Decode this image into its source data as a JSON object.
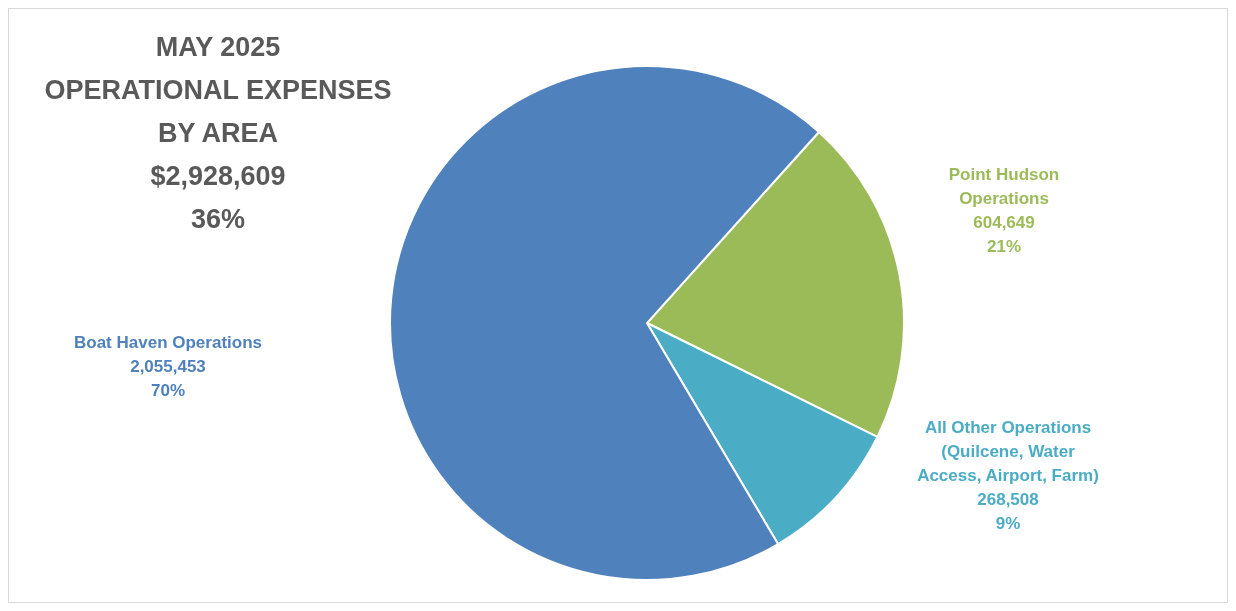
{
  "chart_data": {
    "type": "pie",
    "title": "MAY 2025\nOPERATIONAL EXPENSES\nBY AREA\n$2,928,609\n36%",
    "categories": [
      "Point Hudson\nOperations",
      "All Other Operations\n(Quilcene, Water\nAccess, Airport, Farm)",
      "Boat Haven Operations"
    ],
    "values": [
      604649,
      268508,
      2055453
    ],
    "colors": [
      "#9bbb59",
      "#4bacc6",
      "#4f81bd"
    ],
    "value_labels": [
      "604,649\n21%",
      "268,508\n9%",
      "2,055,453\n70%"
    ]
  }
}
